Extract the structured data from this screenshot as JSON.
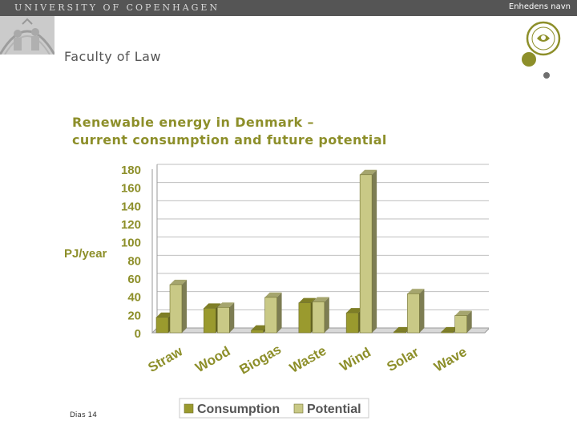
{
  "header": {
    "university": "UNIVERSITY OF COPENHAGEN",
    "unit_name": "Enhedens navn",
    "faculty": "Faculty of Law"
  },
  "slide": {
    "title_line1": "Renewable energy in Denmark –",
    "title_line2": "current consumption and future potential",
    "number_label": "Dias 14"
  },
  "colors": {
    "brand_olive": "#8d8f2a",
    "consumption": "#9a9a2e",
    "potential": "#c9c986",
    "bar_edge": "#707030",
    "header_bar": "#555555"
  },
  "chart_data": {
    "type": "bar",
    "title": "",
    "xlabel": "",
    "ylabel": "PJ/year",
    "ylim": [
      0,
      180
    ],
    "yticks": [
      0,
      20,
      40,
      60,
      80,
      100,
      120,
      140,
      160,
      180
    ],
    "grid": true,
    "legend_position": "bottom",
    "categories": [
      "Straw",
      "Wood",
      "Biogas",
      "Waste",
      "Wind",
      "Solar",
      "Wave"
    ],
    "series": [
      {
        "name": "Consumption",
        "values": [
          17,
          27,
          3,
          33,
          22,
          1,
          1
        ]
      },
      {
        "name": "Potential",
        "values": [
          53,
          28,
          39,
          34,
          174,
          43,
          19
        ]
      }
    ]
  }
}
